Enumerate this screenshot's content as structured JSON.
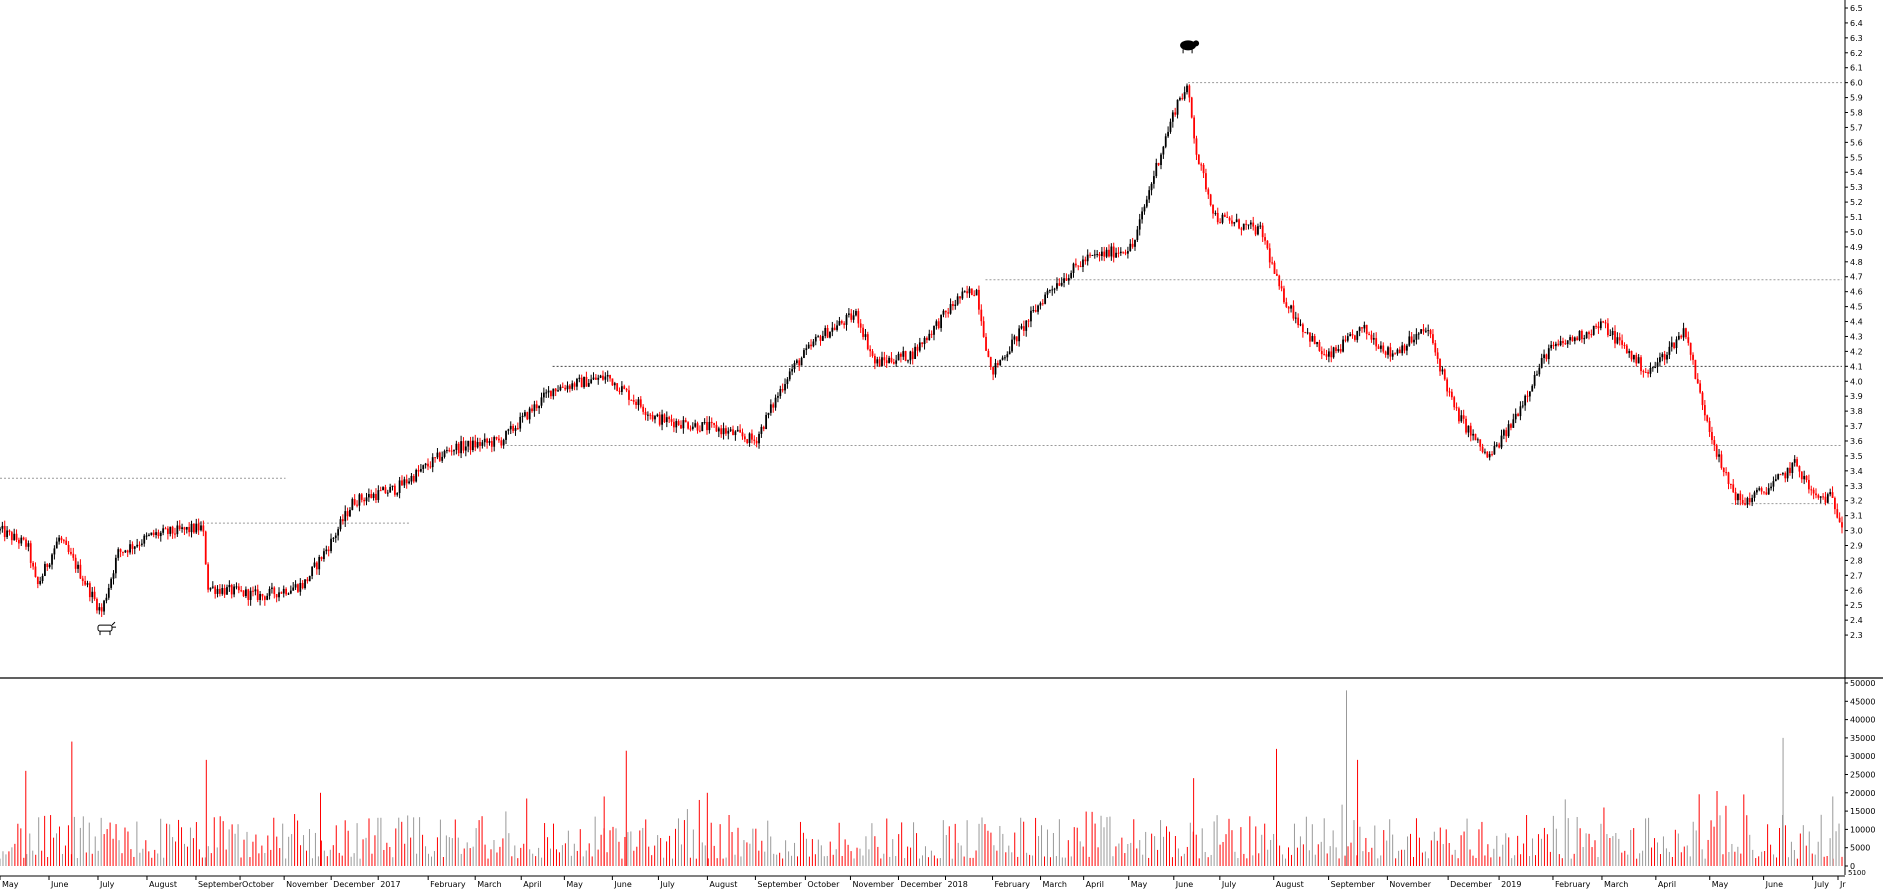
{
  "chart_data": [
    {
      "type": "candlestick",
      "panel": "price",
      "title": "",
      "xlabel": "",
      "ylabel": "",
      "ylim": [
        2.2,
        6.5
      ],
      "y_ticks": [
        "2.3",
        "2.4",
        "2.5",
        "2.6",
        "2.7",
        "2.8",
        "2.9",
        "3.0",
        "3.1",
        "3.2",
        "3.3",
        "3.4",
        "3.5",
        "3.6",
        "3.7",
        "3.8",
        "3.9",
        "4.0",
        "4.1",
        "4.2",
        "4.3",
        "4.4",
        "4.5",
        "4.6",
        "4.7",
        "4.8",
        "4.9",
        "5.0",
        "5.1",
        "5.2",
        "5.3",
        "5.4",
        "5.5",
        "5.6",
        "5.7",
        "5.8",
        "5.9",
        "6.0",
        "6.1",
        "6.2",
        "6.3",
        "6.4",
        "6.5"
      ],
      "x_tick_labels": [
        "May",
        "June",
        "July",
        "August",
        "September",
        "October",
        "November",
        "December",
        "2017",
        "February",
        "March",
        "April",
        "May",
        "June",
        "July",
        "August",
        "September",
        "October",
        "November",
        "December",
        "2018",
        "February",
        "March",
        "April",
        "May",
        "June",
        "July",
        "August",
        "September",
        "November",
        "December",
        "2019",
        "February",
        "March",
        "April",
        "May",
        "June",
        "July",
        "Jr"
      ],
      "close_series": [
        {
          "t": 0.0,
          "v": 3.0
        },
        {
          "t": 0.015,
          "v": 2.9
        },
        {
          "t": 0.02,
          "v": 2.62
        },
        {
          "t": 0.032,
          "v": 2.95
        },
        {
          "t": 0.042,
          "v": 2.75
        },
        {
          "t": 0.055,
          "v": 2.45
        },
        {
          "t": 0.064,
          "v": 2.85
        },
        {
          "t": 0.083,
          "v": 2.97
        },
        {
          "t": 0.11,
          "v": 3.02
        },
        {
          "t": 0.113,
          "v": 2.62
        },
        {
          "t": 0.142,
          "v": 2.56
        },
        {
          "t": 0.165,
          "v": 2.64
        },
        {
          "t": 0.18,
          "v": 2.93
        },
        {
          "t": 0.192,
          "v": 3.2
        },
        {
          "t": 0.215,
          "v": 3.28
        },
        {
          "t": 0.245,
          "v": 3.55
        },
        {
          "t": 0.272,
          "v": 3.6
        },
        {
          "t": 0.3,
          "v": 3.95
        },
        {
          "t": 0.33,
          "v": 4.03
        },
        {
          "t": 0.356,
          "v": 3.75
        },
        {
          "t": 0.39,
          "v": 3.68
        },
        {
          "t": 0.41,
          "v": 3.6
        },
        {
          "t": 0.428,
          "v": 4.05
        },
        {
          "t": 0.445,
          "v": 4.3
        },
        {
          "t": 0.465,
          "v": 4.45
        },
        {
          "t": 0.475,
          "v": 4.12
        },
        {
          "t": 0.495,
          "v": 4.18
        },
        {
          "t": 0.52,
          "v": 4.55
        },
        {
          "t": 0.53,
          "v": 4.62
        },
        {
          "t": 0.538,
          "v": 4.05
        },
        {
          "t": 0.555,
          "v": 4.35
        },
        {
          "t": 0.57,
          "v": 4.62
        },
        {
          "t": 0.59,
          "v": 4.82
        },
        {
          "t": 0.615,
          "v": 4.9
        },
        {
          "t": 0.628,
          "v": 5.45
        },
        {
          "t": 0.64,
          "v": 5.9
        },
        {
          "t": 0.645,
          "v": 5.95
        },
        {
          "t": 0.65,
          "v": 5.5
        },
        {
          "t": 0.66,
          "v": 5.1
        },
        {
          "t": 0.685,
          "v": 5.0
        },
        {
          "t": 0.695,
          "v": 4.6
        },
        {
          "t": 0.705,
          "v": 4.4
        },
        {
          "t": 0.72,
          "v": 4.15
        },
        {
          "t": 0.74,
          "v": 4.35
        },
        {
          "t": 0.755,
          "v": 4.18
        },
        {
          "t": 0.775,
          "v": 4.35
        },
        {
          "t": 0.79,
          "v": 3.8
        },
        {
          "t": 0.808,
          "v": 3.48
        },
        {
          "t": 0.82,
          "v": 3.7
        },
        {
          "t": 0.84,
          "v": 4.2
        },
        {
          "t": 0.87,
          "v": 4.38
        },
        {
          "t": 0.895,
          "v": 4.05
        },
        {
          "t": 0.915,
          "v": 4.35
        },
        {
          "t": 0.922,
          "v": 3.95
        },
        {
          "t": 0.935,
          "v": 3.4
        },
        {
          "t": 0.945,
          "v": 3.18
        },
        {
          "t": 0.962,
          "v": 3.3
        },
        {
          "t": 0.975,
          "v": 3.45
        },
        {
          "t": 0.985,
          "v": 3.22
        },
        {
          "t": 0.994,
          "v": 3.22
        },
        {
          "t": 1.0,
          "v": 3.05
        }
      ],
      "reference_levels": [
        {
          "value": 3.35,
          "from": 0.0,
          "to": 0.155
        },
        {
          "value": 3.05,
          "from": 0.108,
          "to": 0.222
        },
        {
          "value": 3.57,
          "from": 0.275,
          "to": 1.0
        },
        {
          "value": 4.1,
          "from": 0.3,
          "to": 1.0
        },
        {
          "value": 4.68,
          "from": 0.535,
          "to": 1.0
        },
        {
          "value": 6.0,
          "from": 0.645,
          "to": 1.0
        },
        {
          "value": 3.18,
          "from": 0.94,
          "to": 0.995
        }
      ],
      "annotations": [
        {
          "kind": "bull",
          "t": 0.057,
          "v": 2.34
        },
        {
          "kind": "bear",
          "t": 0.645,
          "v": 6.25
        }
      ],
      "colors": {
        "up": "#000000",
        "down": "#ff0000",
        "reference": "#9a9a9a"
      }
    },
    {
      "type": "bar",
      "panel": "volume",
      "title": "",
      "ylim": [
        0,
        50000
      ],
      "y_ticks": [
        "0",
        "5000",
        "10000",
        "15000",
        "20000",
        "25000",
        "30000",
        "35000",
        "40000",
        "45000",
        "50000"
      ],
      "spikes": [
        {
          "t": 0.014,
          "v": 26000
        },
        {
          "t": 0.039,
          "v": 34000
        },
        {
          "t": 0.112,
          "v": 29000
        },
        {
          "t": 0.174,
          "v": 20000
        },
        {
          "t": 0.328,
          "v": 19000
        },
        {
          "t": 0.34,
          "v": 31500
        },
        {
          "t": 0.384,
          "v": 20000
        },
        {
          "t": 0.648,
          "v": 24000
        },
        {
          "t": 0.693,
          "v": 32000
        },
        {
          "t": 0.731,
          "v": 48000
        },
        {
          "t": 0.737,
          "v": 29000
        },
        {
          "t": 0.968,
          "v": 35000
        },
        {
          "t": 0.995,
          "v": 19000
        }
      ],
      "typical_range": [
        2000,
        14000
      ],
      "colors": {
        "up": "#999999",
        "down": "#ff0000"
      },
      "corner_label": "5100"
    }
  ]
}
